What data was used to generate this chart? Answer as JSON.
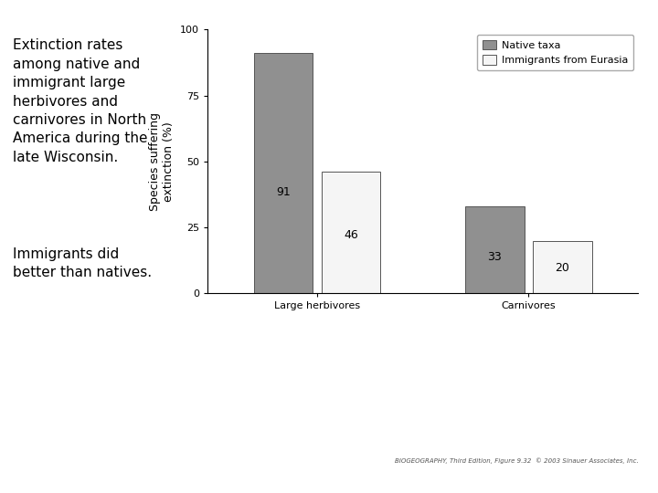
{
  "categories": [
    "Large herbivores",
    "Carnivores"
  ],
  "native_values": [
    91,
    33
  ],
  "immigrant_values": [
    46,
    20
  ],
  "native_color": "#909090",
  "immigrant_color": "#f5f5f5",
  "bar_edge_color": "#555555",
  "ylabel": "Species suffering\nextinction (%)",
  "ylim": [
    0,
    100
  ],
  "yticks": [
    0,
    25,
    50,
    75,
    100
  ],
  "legend_native": "Native taxa",
  "legend_immigrant": "Immigrants from Eurasia",
  "bar_width": 0.28,
  "bar_label_fontsize": 9,
  "axis_fontsize": 9,
  "tick_fontsize": 8,
  "legend_fontsize": 8,
  "caption_text": "Extinction rates\namong native and\nimmigrant large\nherbivores and\ncarnivores in North\nAmerica during the\nlate Wisconsin.",
  "caption2_text": "Immigrants did\nbetter than natives.",
  "background_color": "#ffffff",
  "source_text": "BIOGEOGRAPHY, Third Edition, Figure 9.32  © 2003 Sinauer Associates, Inc."
}
